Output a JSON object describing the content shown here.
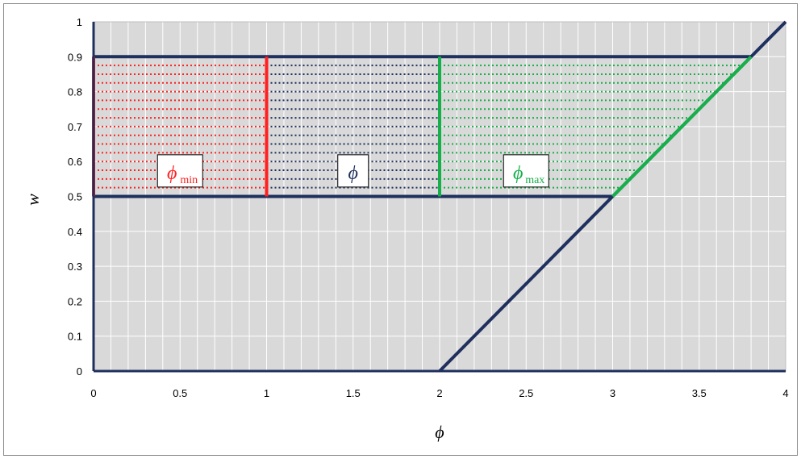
{
  "chart_data": {
    "type": "line",
    "title": "",
    "xlabel": "ϕ",
    "ylabel": "w",
    "xlim": [
      0,
      4
    ],
    "ylim": [
      0,
      1
    ],
    "x_ticks": [
      "0",
      "0.5",
      "1",
      "1.5",
      "2",
      "2.5",
      "3",
      "3.5",
      "4"
    ],
    "y_ticks": [
      "0",
      "0.1",
      "0.2",
      "0.3",
      "0.4",
      "0.5",
      "0.6",
      "0.7",
      "0.8",
      "0.9",
      "1"
    ],
    "grid": true,
    "colors": {
      "navy": "#1f2f5e",
      "red": "#ff2020",
      "green": "#16b04a",
      "plot_bg": "#d9d9d9",
      "grid": "#ffffff"
    },
    "series": [
      {
        "role": "boundary-line",
        "color": "#1f2f5e",
        "x": [
          2,
          4
        ],
        "y": [
          0,
          1
        ]
      },
      {
        "role": "lower-bound",
        "color": "#1f2f5e",
        "x": [
          0,
          3
        ],
        "y": [
          0.5,
          0.5
        ]
      },
      {
        "role": "upper-bound",
        "color": "#1f2f5e",
        "x": [
          0,
          3.8
        ],
        "y": [
          0.9,
          0.9
        ]
      },
      {
        "role": "red-bar",
        "color": "#ff2020",
        "x": [
          0,
          0
        ],
        "y": [
          0.5,
          0.9
        ]
      },
      {
        "role": "red-bar",
        "color": "#ff2020",
        "x": [
          1,
          1
        ],
        "y": [
          0.5,
          0.9
        ]
      },
      {
        "role": "green-bar",
        "color": "#16b04a",
        "x": [
          2,
          2
        ],
        "y": [
          0.5,
          0.9
        ]
      },
      {
        "role": "green-diagonal",
        "color": "#16b04a",
        "x": [
          3,
          3.8
        ],
        "y": [
          0.5,
          0.9
        ]
      }
    ],
    "hatch": {
      "y_levels": [
        0.525,
        0.55,
        0.575,
        0.6,
        0.625,
        0.65,
        0.675,
        0.7,
        0.725,
        0.75,
        0.775,
        0.8,
        0.825,
        0.85,
        0.875
      ],
      "red_range": [
        0,
        1
      ],
      "navy_range": [
        1,
        2
      ],
      "green_start": 2
    },
    "annotations": [
      {
        "symbol": "ϕ",
        "sub": "min",
        "color": "#ff2020",
        "x": 0.5,
        "y": 0.58
      },
      {
        "symbol": "ϕ",
        "sub": "",
        "color": "#1f2f5e",
        "x": 1.5,
        "y": 0.58
      },
      {
        "symbol": "ϕ",
        "sub": "max",
        "color": "#16b04a",
        "x": 2.5,
        "y": 0.58
      }
    ]
  }
}
